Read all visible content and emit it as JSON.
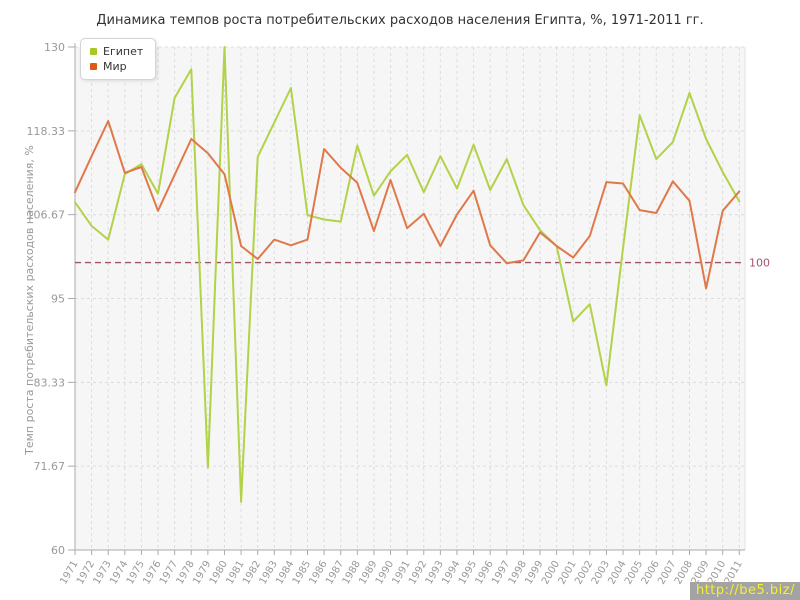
{
  "title": "Динамика темпов роста потребительских расходов населения Египта, %, 1971-2011 гг.",
  "y_axis": {
    "label": "Темп роста потребительских расходов населения, %",
    "ticks": [
      {
        "value": 130,
        "label": "130"
      },
      {
        "value": 118.33,
        "label": "118.33"
      },
      {
        "value": 106.67,
        "label": "106.67"
      },
      {
        "value": 95,
        "label": "95"
      },
      {
        "value": 83.33,
        "label": "83.33"
      },
      {
        "value": 71.67,
        "label": "71.67"
      },
      {
        "value": 60,
        "label": "60"
      }
    ]
  },
  "reference_line": {
    "value": 100,
    "label": "100",
    "color": "#9e5663",
    "label_color": "#a3566b"
  },
  "legend": {
    "items": [
      {
        "id": "egypt",
        "label": "Египет",
        "color": "#a7c724"
      },
      {
        "id": "world",
        "label": "Мир",
        "color": "#dc5a17"
      }
    ]
  },
  "watermark": {
    "text": "http://be5.biz/",
    "color": "#f8ef2f",
    "background": "#a3a3a3"
  },
  "colors": {
    "plot_bg": "#f6f6f6",
    "plot_right_border": "#e3e3e3",
    "grid": "#dcdcdc",
    "axis": "#ababab",
    "tick_labels": "#999999"
  },
  "chart_data": {
    "type": "line",
    "title": "Динамика темпов роста потребительских расходов населения Египта, %, 1971-2011 гг.",
    "xlabel": "",
    "ylabel": "Темп роста потребительских расходов населения, %",
    "ylim": [
      60,
      130
    ],
    "grid": true,
    "legend_position": "top-left",
    "reference_y": 100,
    "x": [
      1971,
      1972,
      1973,
      1974,
      1975,
      1976,
      1977,
      1978,
      1979,
      1980,
      1981,
      1982,
      1983,
      1984,
      1985,
      1986,
      1987,
      1988,
      1989,
      1990,
      1991,
      1992,
      1993,
      1994,
      1995,
      1996,
      1997,
      1998,
      1999,
      2000,
      2001,
      2002,
      2003,
      2004,
      2005,
      2006,
      2007,
      2008,
      2009,
      2010,
      2011
    ],
    "series": [
      {
        "name": "Египет",
        "id": "egypt",
        "color": "#b2d249",
        "values": [
          108.4,
          105.1,
          103.2,
          112.3,
          113.7,
          109.6,
          122.9,
          126.9,
          71.5,
          130,
          66.7,
          114.7,
          119.5,
          124.3,
          106.6,
          106,
          105.7,
          116.3,
          109.3,
          112.7,
          115,
          109.8,
          114.8,
          110.3,
          116.4,
          110.1,
          114.4,
          108,
          104.5,
          102.3,
          91.8,
          94.2,
          82.9,
          102,
          120.5,
          114.4,
          116.8,
          123.6,
          117.2,
          112.6,
          108.5
        ]
      },
      {
        "name": "Мир",
        "id": "world",
        "color": "#e0784a",
        "values": [
          109.8,
          114.8,
          119.7,
          112.5,
          113.3,
          107.2,
          112.2,
          117.2,
          115.2,
          112.3,
          102.3,
          100.5,
          103.2,
          102.4,
          103.2,
          115.8,
          113.2,
          111.1,
          104.4,
          111.5,
          104.8,
          106.8,
          102.3,
          106.7,
          110,
          102.4,
          99.9,
          100.3,
          104.2,
          102.3,
          100.7,
          103.7,
          111.2,
          111,
          107.3,
          106.9,
          111.3,
          108.6,
          96.4,
          107.2,
          109.9
        ]
      }
    ]
  }
}
